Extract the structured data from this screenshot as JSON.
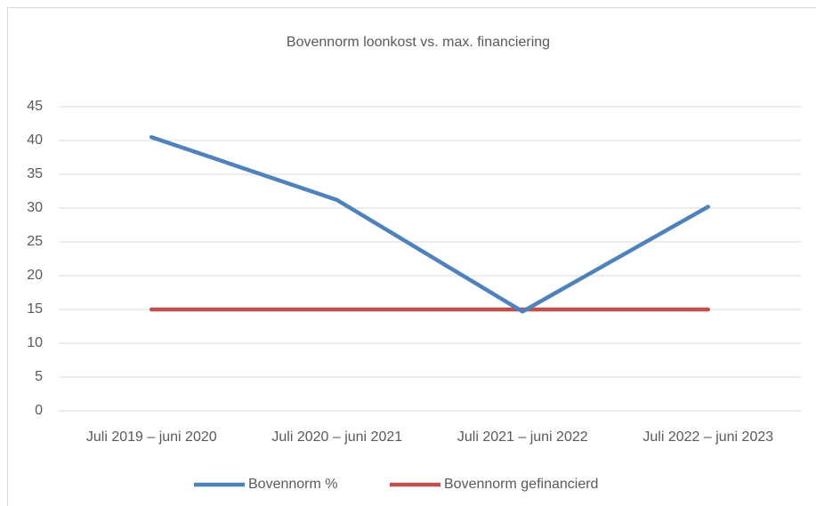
{
  "chart_data": {
    "type": "line",
    "title": "Bovennorm loonkost vs. max. financiering",
    "categories": [
      "Juli 2019 – juni 2020",
      "Juli 2020 – juni 2021",
      "Juli 2021 – juni 2022",
      "Juli 2022 – juni 2023"
    ],
    "series": [
      {
        "name": "Bovennorm %",
        "color": "#4f81bd",
        "values": [
          40.5,
          31.2,
          14.7,
          30.2
        ]
      },
      {
        "name": "Bovennorm gefinancierd",
        "color": "#c0504d",
        "values": [
          15,
          15,
          15,
          15
        ]
      }
    ],
    "ylim": [
      0,
      45
    ],
    "yticks": [
      0,
      5,
      10,
      15,
      20,
      25,
      30,
      35,
      40,
      45
    ],
    "grid": true,
    "legend": "bottom"
  }
}
